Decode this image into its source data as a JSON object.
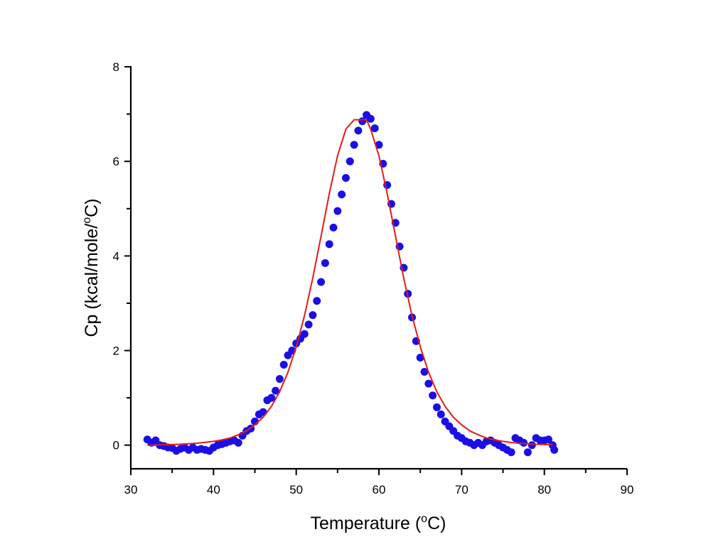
{
  "chart_data": {
    "type": "scatter",
    "xlabel_parts": [
      "Temperature (",
      "o",
      "C)"
    ],
    "ylabel_parts": [
      "Cp (kcal/mole/",
      "o",
      "C)"
    ],
    "xlim": [
      30,
      90
    ],
    "ylim": [
      -0.5,
      8
    ],
    "xticks": [
      "30",
      "40",
      "50",
      "60",
      "70",
      "80",
      "90"
    ],
    "yticks": [
      "0",
      "2",
      "4",
      "6",
      "8"
    ],
    "grid": false,
    "colors": {
      "data": "#1a0fe6",
      "fit": "#e31a1a",
      "axis": "#000000"
    },
    "series": [
      {
        "kind": "scatter",
        "x": [
          32,
          32.5,
          33,
          33.5,
          34,
          34.5,
          35,
          35.5,
          36,
          36.5,
          37,
          37.5,
          38,
          38.5,
          39,
          39.5,
          40,
          40.5,
          41,
          41.5,
          42,
          42.5,
          43,
          43.5,
          44,
          44.5,
          45,
          45.5,
          46,
          46.5,
          47,
          47.5,
          48,
          48.5,
          49,
          49.5,
          50,
          50.5,
          51,
          51.5,
          52,
          52.5,
          53,
          53.5,
          54,
          54.5,
          55,
          55.5,
          56,
          56.5,
          57,
          57.5,
          58,
          58.5,
          59,
          59.5,
          60,
          60.5,
          61,
          61.5,
          62,
          62.5,
          63,
          63.5,
          64,
          64.5,
          65,
          65.5,
          66,
          66.5,
          67,
          67.5,
          68,
          68.5,
          69,
          69.5,
          70,
          70.5,
          71,
          71.5,
          72,
          72.5,
          73,
          73.5,
          74,
          74.5,
          75,
          75.5,
          76,
          76.5,
          77,
          77.5,
          78,
          78.5,
          79,
          79.5,
          80,
          80.5,
          81,
          81.2
        ],
        "y": [
          0.12,
          0.05,
          0.1,
          0.0,
          -0.02,
          -0.05,
          -0.06,
          -0.12,
          -0.08,
          -0.05,
          -0.1,
          -0.05,
          -0.1,
          -0.08,
          -0.1,
          -0.12,
          -0.05,
          0.0,
          0.02,
          0.05,
          0.08,
          0.1,
          0.05,
          0.2,
          0.3,
          0.35,
          0.5,
          0.65,
          0.7,
          0.95,
          1.0,
          1.15,
          1.4,
          1.7,
          1.9,
          2.0,
          2.15,
          2.25,
          2.35,
          2.55,
          2.75,
          3.05,
          3.45,
          3.85,
          4.25,
          4.6,
          4.95,
          5.3,
          5.65,
          6.0,
          6.35,
          6.65,
          6.85,
          6.98,
          6.9,
          6.7,
          6.35,
          5.95,
          5.5,
          5.1,
          4.7,
          4.2,
          3.75,
          3.2,
          2.7,
          2.2,
          1.85,
          1.55,
          1.3,
          1.05,
          0.8,
          0.65,
          0.5,
          0.4,
          0.3,
          0.2,
          0.15,
          0.08,
          0.05,
          0.0,
          0.05,
          0.0,
          0.08,
          0.1,
          0.05,
          0.0,
          -0.05,
          -0.1,
          -0.15,
          0.15,
          0.1,
          0.05,
          -0.15,
          0.0,
          0.15,
          0.1,
          0.1,
          0.12,
          0.0,
          -0.1
        ]
      },
      {
        "kind": "line",
        "x": [
          32,
          33,
          34,
          35,
          36,
          37,
          38,
          39,
          40,
          41,
          42,
          43,
          44,
          45,
          46,
          47,
          48,
          49,
          50,
          51,
          52,
          53,
          54,
          55,
          56,
          57,
          58,
          58.5,
          59,
          60,
          61,
          62,
          63,
          64,
          65,
          66,
          67,
          68,
          69,
          70,
          71,
          72,
          73,
          74,
          75,
          76,
          77,
          78,
          79,
          80,
          81
        ],
        "y": [
          0.0,
          0.0,
          0.01,
          0.01,
          0.02,
          0.03,
          0.04,
          0.06,
          0.08,
          0.11,
          0.15,
          0.22,
          0.3,
          0.43,
          0.59,
          0.82,
          1.13,
          1.54,
          2.08,
          2.74,
          3.53,
          4.42,
          5.32,
          6.12,
          6.68,
          6.88,
          6.88,
          6.88,
          6.68,
          6.12,
          5.32,
          4.42,
          3.53,
          2.74,
          2.08,
          1.54,
          1.13,
          0.82,
          0.59,
          0.43,
          0.3,
          0.22,
          0.15,
          0.11,
          0.08,
          0.055,
          0.04,
          0.03,
          0.02,
          0.014,
          0.01
        ]
      }
    ]
  }
}
